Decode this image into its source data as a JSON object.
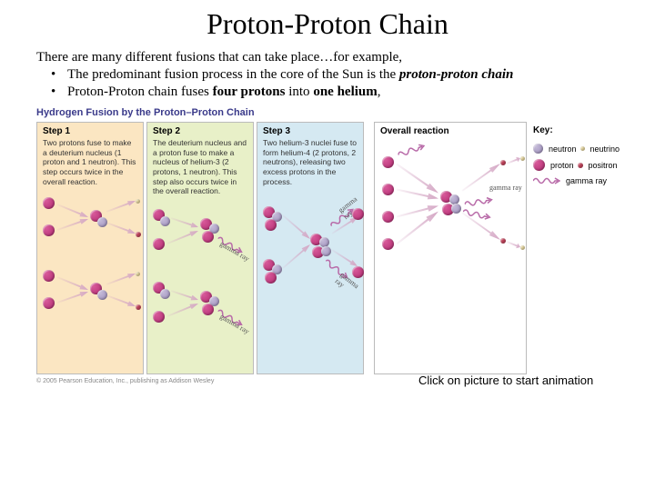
{
  "title": "Proton-Proton Chain",
  "intro": "There are many different fusions that can take place…for example,",
  "bullets": [
    {
      "pre": "The predominant fusion process in the core of the Sun is the ",
      "em": "proton-proton chain"
    },
    {
      "pre": "Proton-Proton chain fuses ",
      "b1": "four protons",
      "mid": " into ",
      "b2": "one helium",
      "post": ","
    }
  ],
  "diagram": {
    "title": "Hydrogen Fusion by the Proton–Proton Chain",
    "panels": [
      {
        "name": "step1",
        "width": 118,
        "bg": "#fbe6c2",
        "head": "Step 1",
        "body": "Two protons fuse to make a deuterium nucleus (1 proton and 1 neutron). This step occurs twice in the overall reaction."
      },
      {
        "name": "step2",
        "width": 118,
        "bg": "#e8f0c8",
        "head": "Step 2",
        "body": "The deuterium nucleus and a proton fuse to make a nucleus of helium-3 (2 protons, 1 neutron). This step also occurs twice in the overall reaction."
      },
      {
        "name": "step3",
        "width": 118,
        "bg": "#d5e9f2",
        "head": "Step 3",
        "body": "Two helium-3 nuclei fuse to form helium-4 (2 protons, 2 neutrons), releasing two excess protons in the process."
      },
      {
        "name": "overall",
        "width": 168,
        "bg": "#ffffff",
        "head": "Overall reaction",
        "body": ""
      }
    ],
    "key": {
      "title": "Key:",
      "items": [
        {
          "name": "neutron",
          "label": "neutron",
          "color": "#9c8dbb",
          "size": 11
        },
        {
          "name": "neutrino",
          "label": "neutrino",
          "color": "#e9d9a0",
          "size": 5
        },
        {
          "name": "proton",
          "label": "proton",
          "color": "#b02a6f",
          "size": 13
        },
        {
          "name": "positron",
          "label": "positron",
          "color": "#c2445c",
          "size": 6
        },
        {
          "name": "gamma",
          "label": "gamma ray",
          "color": "#b86aa8",
          "stroke": 1.5
        }
      ]
    },
    "colors": {
      "proton": "#b02a6f",
      "neutron": "#9c8dbb",
      "positron": "#c2445c",
      "neutrino": "#e9d9a0",
      "gamma": "#b86aa8",
      "arrow": "#d4a6c4",
      "overall_arrow": "#d4a6c4",
      "border": "#bbbbbb"
    },
    "gamma_label": "gamma ray"
  },
  "caption": "Click on picture to start animation",
  "copyright": "© 2005 Pearson Education, Inc., publishing as Addison Wesley"
}
